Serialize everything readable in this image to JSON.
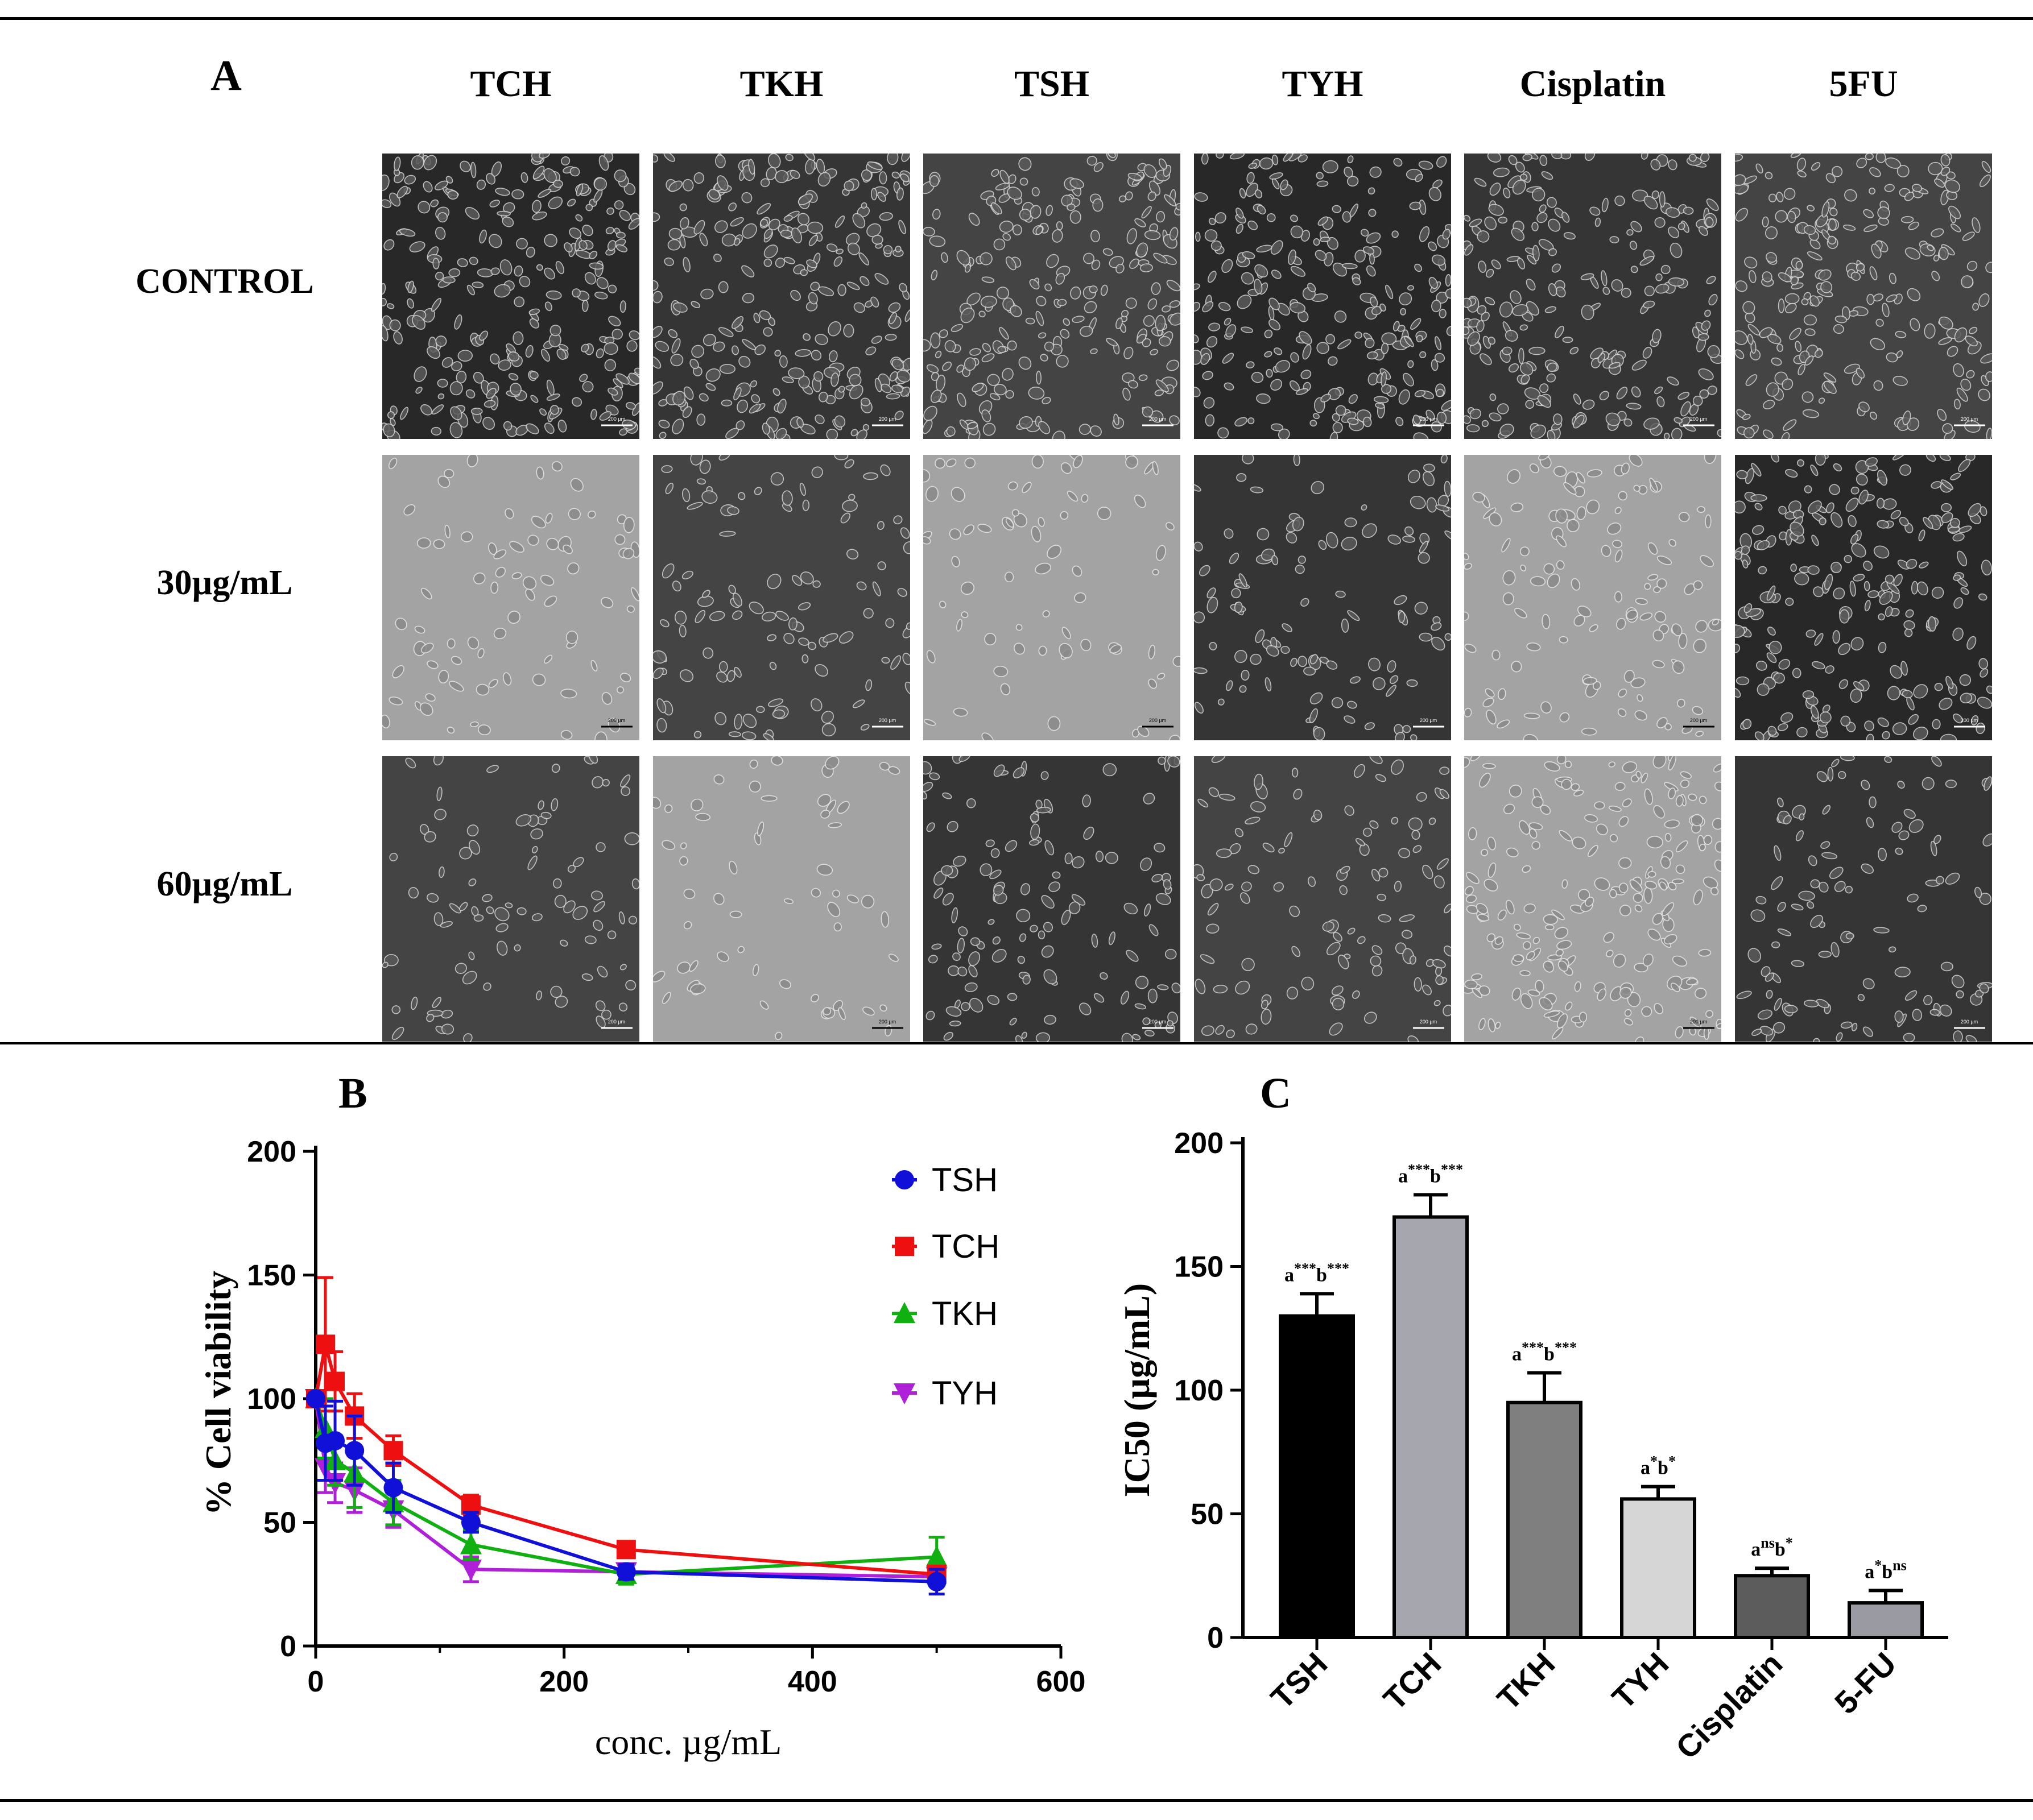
{
  "panel_a": {
    "letter": "A",
    "columns": [
      "TCH",
      "TKH",
      "TSH",
      "TYH",
      "Cisplatin",
      "5FU"
    ],
    "rows": [
      "CONTROL",
      "30µg/mL",
      "60µg/mL"
    ],
    "scale_bar_label": "200 µm"
  },
  "panel_b": {
    "letter": "B"
  },
  "panel_c": {
    "letter": "C"
  },
  "colors": {
    "TSH": "#1010d8",
    "TCH": "#ee1010",
    "TKH": "#10b010",
    "TYH": "#b020d8"
  },
  "chart_data": [
    {
      "type": "line",
      "xlabel": "conc. µg/mL",
      "ylabel": "% Cell viability",
      "xlim": [
        0,
        600
      ],
      "ylim": [
        0,
        200
      ],
      "xticks": [
        0,
        200,
        400,
        600
      ],
      "yticks": [
        0,
        50,
        100,
        150,
        200
      ],
      "legend_position": "top-right",
      "series": [
        {
          "name": "TSH",
          "marker": "circle",
          "color": "#1010d8",
          "x": [
            0,
            7.8,
            15.6,
            31.25,
            62.5,
            125,
            250,
            500
          ],
          "y": [
            100,
            82,
            83,
            79,
            64,
            50,
            30,
            26
          ],
          "err": [
            2,
            15,
            16,
            14,
            10,
            4,
            3,
            5
          ]
        },
        {
          "name": "TCH",
          "marker": "square",
          "color": "#ee1010",
          "x": [
            0,
            7.8,
            15.6,
            31.25,
            62.5,
            125,
            250,
            500
          ],
          "y": [
            100,
            122,
            107,
            93,
            79,
            57,
            39,
            29
          ],
          "err": [
            2,
            27,
            12,
            9,
            6,
            4,
            3,
            3
          ]
        },
        {
          "name": "TKH",
          "marker": "triangle-up",
          "color": "#10b010",
          "x": [
            0,
            7.8,
            15.6,
            31.25,
            62.5,
            125,
            250,
            500
          ],
          "y": [
            100,
            88,
            75,
            70,
            58,
            41,
            29,
            36
          ],
          "err": [
            2,
            12,
            10,
            14,
            9,
            6,
            4,
            8
          ]
        },
        {
          "name": "TYH",
          "marker": "triangle-down",
          "color": "#b020d8",
          "x": [
            0,
            7.8,
            15.6,
            31.25,
            62.5,
            125,
            250,
            500
          ],
          "y": [
            100,
            72,
            66,
            63,
            55,
            31,
            30,
            28
          ],
          "err": [
            2,
            10,
            8,
            9,
            7,
            5,
            3,
            3
          ]
        }
      ]
    },
    {
      "type": "bar",
      "ylabel": "IC50 (µg/mL)",
      "ylim": [
        0,
        200
      ],
      "yticks": [
        0,
        50,
        100,
        150,
        200
      ],
      "categories": [
        "TSH",
        "TCH",
        "TKH",
        "TYH",
        "Cisplatin",
        "5-FU"
      ],
      "values": [
        130,
        170,
        95,
        56,
        25,
        14
      ],
      "errors": [
        9,
        9,
        12,
        5,
        3,
        5
      ],
      "fill_colors": [
        "#000000",
        "#a6a6ae",
        "#7f7f7f",
        "#d6d6d6",
        "#5c5c5c",
        "#9a9aa2"
      ],
      "annotations": [
        {
          "a": "a",
          "a_sup": "***",
          "b": "b",
          "b_sup": "***"
        },
        {
          "a": "a",
          "a_sup": "***",
          "b": "b",
          "b_sup": "***"
        },
        {
          "a": "a",
          "a_sup": "***",
          "b": "b",
          "b_sup": "***"
        },
        {
          "a": "a",
          "a_sup": "*",
          "b": "b",
          "b_sup": "*"
        },
        {
          "a": "a",
          "a_sup": "ns",
          "b": "b",
          "b_sup": "*"
        },
        {
          "a": "a",
          "a_sup": "*",
          "b": "b",
          "b_sup": "ns"
        }
      ]
    }
  ]
}
